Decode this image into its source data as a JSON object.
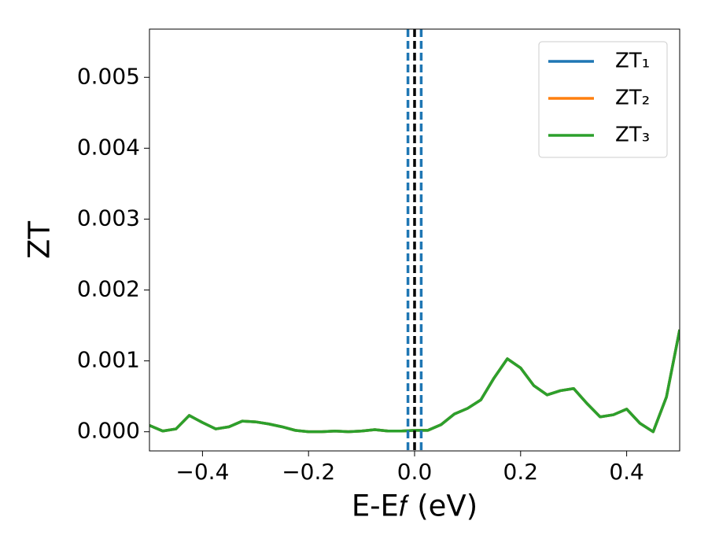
{
  "chart_data": {
    "type": "line",
    "xlabel": "E-E𝑓 (eV)",
    "ylabel": "ZT",
    "x": [
      -0.5,
      -0.475,
      -0.45,
      -0.425,
      -0.4,
      -0.375,
      -0.35,
      -0.325,
      -0.3,
      -0.275,
      -0.25,
      -0.225,
      -0.2,
      -0.175,
      -0.15,
      -0.125,
      -0.1,
      -0.075,
      -0.05,
      -0.025,
      0,
      0.025,
      0.05,
      0.075,
      0.1,
      0.125,
      0.15,
      0.175,
      0.2,
      0.225,
      0.25,
      0.275,
      0.3,
      0.325,
      0.35,
      0.375,
      0.4,
      0.425,
      0.45,
      0.475,
      0.5
    ],
    "series": [
      {
        "name": "ZT₁",
        "color": "#1f77b4",
        "values": [
          9e-05,
          1e-05,
          4e-05,
          0.00023,
          0.00013,
          4e-05,
          7e-05,
          0.00015,
          0.00014,
          0.00011,
          7e-05,
          2e-05,
          0,
          0,
          1e-05,
          0,
          1e-05,
          3e-05,
          1e-05,
          1e-05,
          2e-05,
          2e-05,
          0.0001,
          0.00025,
          0.00033,
          0.00045,
          0.00076,
          0.00103,
          0.0009,
          0.00065,
          0.00052,
          0.00058,
          0.00061,
          0.0004,
          0.00021,
          0.00024,
          0.00032,
          0.00012,
          0,
          0.00049,
          0.00144
        ]
      },
      {
        "name": "ZT₂",
        "color": "#ff7f0e",
        "values": [
          9e-05,
          1e-05,
          4e-05,
          0.00023,
          0.00013,
          4e-05,
          7e-05,
          0.00015,
          0.00014,
          0.00011,
          7e-05,
          2e-05,
          0,
          0,
          1e-05,
          0,
          1e-05,
          3e-05,
          1e-05,
          1e-05,
          2e-05,
          2e-05,
          0.0001,
          0.00025,
          0.00033,
          0.00045,
          0.00076,
          0.00103,
          0.0009,
          0.00065,
          0.00052,
          0.00058,
          0.00061,
          0.0004,
          0.00021,
          0.00024,
          0.00032,
          0.00012,
          0,
          0.00049,
          0.00144
        ]
      },
      {
        "name": "ZT₃",
        "color": "#2ca02c",
        "values": [
          9e-05,
          1e-05,
          4e-05,
          0.00023,
          0.00013,
          4e-05,
          7e-05,
          0.00015,
          0.00014,
          0.00011,
          7e-05,
          2e-05,
          0,
          0,
          1e-05,
          0,
          1e-05,
          3e-05,
          1e-05,
          1e-05,
          2e-05,
          2e-05,
          0.0001,
          0.00025,
          0.00033,
          0.00045,
          0.00076,
          0.00103,
          0.0009,
          0.00065,
          0.00052,
          0.00058,
          0.00061,
          0.0004,
          0.00021,
          0.00024,
          0.00032,
          0.00012,
          0,
          0.00049,
          0.00144
        ]
      }
    ],
    "vlines": [
      {
        "x": 0,
        "color": "#000000"
      },
      {
        "x": -0.0125,
        "color": "#1f77b4"
      },
      {
        "x": 0.0125,
        "color": "#1f77b4"
      }
    ],
    "xlim": [
      -0.5,
      0.5
    ],
    "xticks": [
      {
        "value": -0.4,
        "label": "−0.4"
      },
      {
        "value": -0.2,
        "label": "−0.2"
      },
      {
        "value": 0,
        "label": "0.0"
      },
      0.2,
      0.4
    ],
    "ylim": [
      -0.00027,
      0.00568
    ],
    "yticks": [
      {
        "value": 0,
        "label": "0.000"
      },
      0.001,
      0.002,
      0.003,
      0.004,
      0.005
    ],
    "legend": "upper right",
    "grid": false
  }
}
